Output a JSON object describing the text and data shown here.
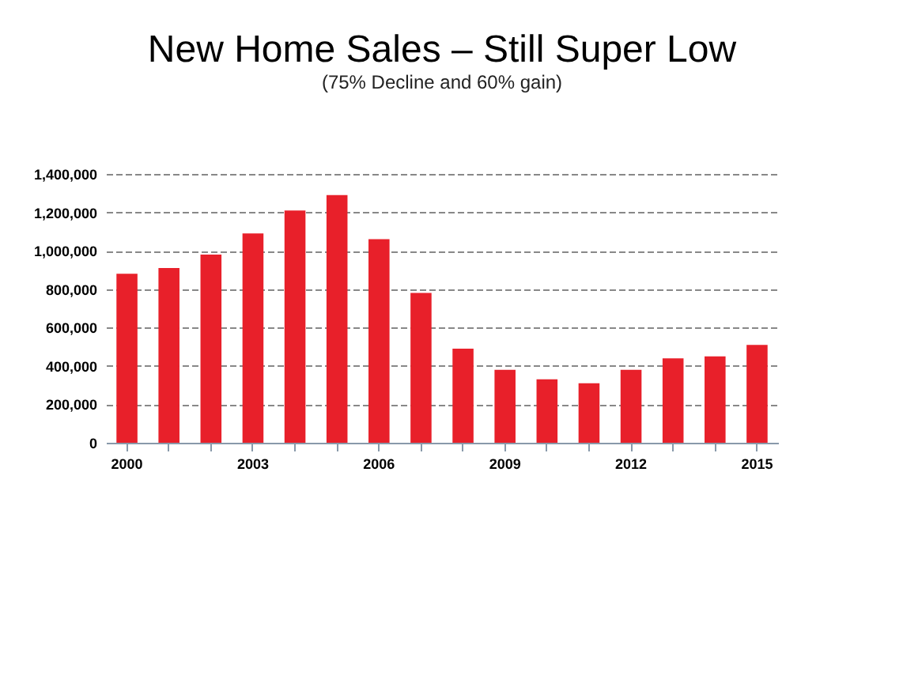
{
  "chart_data": {
    "type": "bar",
    "title": "New Home Sales – Still Super Low",
    "subtitle": "(75% Decline and 60% gain)",
    "categories": [
      "2000",
      null,
      null,
      "2003",
      null,
      null,
      "2006",
      null,
      null,
      "2009",
      null,
      null,
      "2012",
      null,
      null,
      "2015"
    ],
    "values": [
      880000,
      910000,
      980000,
      1090000,
      1210000,
      1290000,
      1060000,
      780000,
      490000,
      380000,
      330000,
      310000,
      380000,
      440000,
      450000,
      510000
    ],
    "color": "#e8202a",
    "ylim": [
      0,
      1400000
    ],
    "yticks": [
      {
        "value": 0,
        "label": "0"
      },
      {
        "value": 200000,
        "label": "200,000"
      },
      {
        "value": 400000,
        "label": "400,000"
      },
      {
        "value": 600000,
        "label": "600,000"
      },
      {
        "value": 800000,
        "label": "800,000"
      },
      {
        "value": 1000000,
        "label": "1,000,000"
      },
      {
        "value": 1200000,
        "label": "1,200,000"
      },
      {
        "value": 1400000,
        "label": "1,400,000"
      }
    ],
    "grid": "y"
  }
}
